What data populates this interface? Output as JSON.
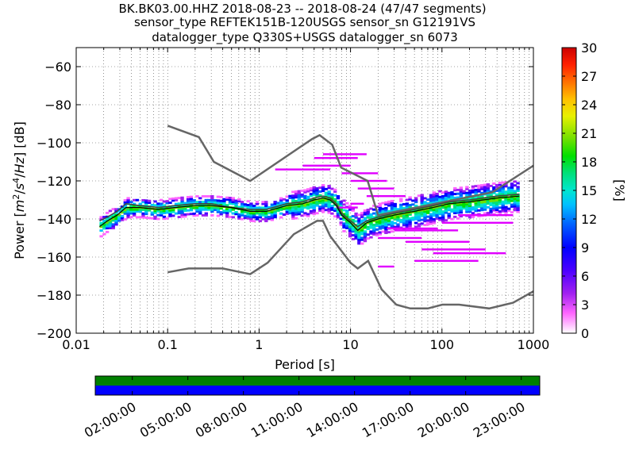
{
  "chart_data": [
    {
      "type": "heatmap",
      "title_lines": [
        "BK.BK03.00.HHZ   2018-08-23 -- 2018-08-24  (47/47 segments)",
        "sensor_type REFTEK151B-120USGS sensor_sn G12191VS",
        "datalogger_type Q330S+USGS datalogger_sn 6073"
      ],
      "xlabel": "Period [s]",
      "ylabel": "Power [m²/s⁴/Hz] [dB]",
      "xscale": "log",
      "xlim": [
        0.01,
        1000
      ],
      "ylim": [
        -200,
        -50
      ],
      "xticks": [
        0.01,
        0.1,
        1,
        10,
        100,
        1000
      ],
      "xtick_labels": [
        "0.01",
        "0.1",
        "1",
        "10",
        "100",
        "1000"
      ],
      "yticks": [
        -200,
        -180,
        -160,
        -140,
        -120,
        -100,
        -80,
        -60
      ],
      "ytick_labels": [
        "−200",
        "−180",
        "−160",
        "−140",
        "−120",
        "−100",
        "−80",
        "−60"
      ],
      "colorbar": {
        "label": "[%]",
        "range": [
          0,
          30
        ],
        "ticks": [
          0,
          3,
          6,
          9,
          12,
          15,
          18,
          21,
          24,
          27,
          30
        ],
        "tick_labels": [
          "0",
          "3",
          "6",
          "9",
          "12",
          "15",
          "18",
          "21",
          "24",
          "27",
          "30"
        ]
      },
      "noise_model_high": {
        "period": [
          0.1,
          0.22,
          0.32,
          0.8,
          3.8,
          4.6,
          6.3,
          7.9,
          15.4,
          20,
          354,
          1000
        ],
        "power": [
          -91,
          -97,
          -110,
          -120,
          -98,
          -96,
          -101,
          -113,
          -120,
          -138,
          -126,
          -112
        ]
      },
      "noise_model_low": {
        "period": [
          0.1,
          0.17,
          0.4,
          0.8,
          1.24,
          2.4,
          4.3,
          5.0,
          6.0,
          10,
          12,
          15.6,
          21.9,
          31.6,
          45,
          70,
          101,
          154,
          328,
          600,
          1000
        ],
        "power": [
          -168,
          -166,
          -166,
          -169,
          -163,
          -148,
          -141,
          -141,
          -149,
          -163,
          -166,
          -162,
          -177,
          -185,
          -187,
          -187,
          -185,
          -185,
          -187,
          -184,
          -178
        ]
      },
      "mean_psd": {
        "period": [
          0.018,
          0.022,
          0.028,
          0.035,
          0.05,
          0.08,
          0.12,
          0.2,
          0.3,
          0.5,
          0.8,
          1.2,
          2.0,
          3.0,
          4.0,
          5.0,
          6.0,
          7.0,
          8.0,
          10,
          12,
          15,
          20,
          30,
          50,
          80,
          120,
          200,
          400,
          700
        ],
        "power": [
          -144,
          -141,
          -138,
          -134,
          -134,
          -135,
          -134,
          -133,
          -133,
          -134,
          -136,
          -136,
          -133,
          -132,
          -130,
          -129,
          -130,
          -133,
          -138,
          -142,
          -146,
          -142,
          -140,
          -138,
          -136,
          -134,
          -132,
          -131,
          -129,
          -128
        ]
      },
      "mode_psd": {
        "period": [
          0.018,
          0.022,
          0.028,
          0.035,
          0.05,
          0.08,
          0.12,
          0.2,
          0.3,
          0.5,
          0.8,
          1.2,
          2.0,
          3.0,
          4.0,
          5.0,
          6.0,
          7.0,
          8.0,
          10,
          12,
          15,
          20,
          30,
          50,
          80,
          120,
          200,
          400,
          700
        ],
        "power": [
          -141,
          -139,
          -136,
          -132,
          -133,
          -134,
          -133,
          -132,
          -132,
          -134,
          -135,
          -135,
          -132,
          -131,
          -129,
          -128,
          -129,
          -132,
          -137,
          -141,
          -144,
          -141,
          -139,
          -137,
          -135,
          -133,
          -131,
          -130,
          -128,
          -127
        ]
      }
    },
    {
      "type": "bar",
      "description_role": "data_availability",
      "xtick_labels": [
        "02:00:00",
        "05:00:00",
        "08:00:00",
        "11:00:00",
        "14:00:00",
        "17:00:00",
        "20:00:00",
        "23:00:00"
      ],
      "xtick_hours": [
        2,
        5,
        8,
        11,
        14,
        17,
        20,
        23
      ],
      "xlim_hours": [
        0,
        24
      ],
      "rows": [
        {
          "color": "#008000",
          "coverage": [
            0,
            24
          ]
        },
        {
          "color": "#0000ff",
          "coverage": [
            0,
            24
          ]
        }
      ]
    }
  ]
}
